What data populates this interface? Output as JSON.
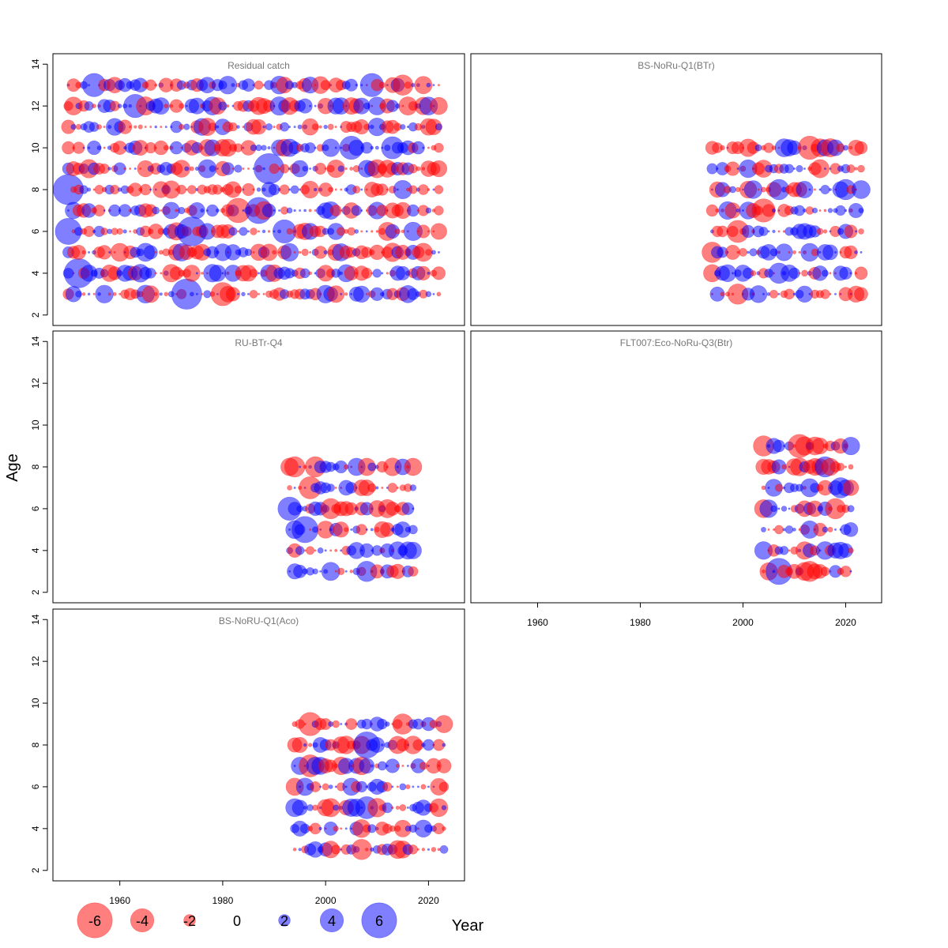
{
  "figure": {
    "ylabel": "Age",
    "xlabel": "Year",
    "xticks": [
      1960,
      1980,
      2000,
      2020
    ],
    "yticks": [
      2,
      4,
      6,
      8,
      10,
      12,
      14
    ],
    "xlim": [
      1947,
      2027
    ],
    "ylim": [
      1.5,
      14.5
    ],
    "positive_color": "#0000FF",
    "negative_color": "#FF0000",
    "fill_opacity": 0.5
  },
  "legend": {
    "values": [
      -6,
      -4,
      -2,
      0,
      2,
      4,
      6
    ],
    "labels": [
      "-6",
      "-4",
      "-2",
      "0",
      "2",
      "4",
      "6"
    ]
  },
  "chart_data": [
    {
      "type": "scatter",
      "title": "Residual catch",
      "encoding": "bubble size = |residual|, color = sign",
      "years": [
        1950,
        2022
      ],
      "ages": [
        3,
        4,
        5,
        6,
        7,
        8,
        9,
        10,
        11,
        12,
        13
      ],
      "highlights": [
        {
          "year": 1950,
          "age": 8,
          "value": 5.2
        },
        {
          "year": 1950,
          "age": 6,
          "value": 4.5
        },
        {
          "year": 1952,
          "age": 4,
          "value": 5.0
        },
        {
          "year": 1955,
          "age": 13,
          "value": 4.0
        },
        {
          "year": 1963,
          "age": 12,
          "value": 4.0
        },
        {
          "year": 1973,
          "age": 3,
          "value": 5.2
        },
        {
          "year": 1974,
          "age": 6,
          "value": 5.0
        },
        {
          "year": 1980,
          "age": 3,
          "value": -4.0
        },
        {
          "year": 1983,
          "age": 7,
          "value": -4.2
        },
        {
          "year": 1987,
          "age": 7,
          "value": 4.5
        },
        {
          "year": 1989,
          "age": 9,
          "value": 5.2
        },
        {
          "year": 1992,
          "age": 6,
          "value": 4.0
        },
        {
          "year": 2005,
          "age": 10,
          "value": 4.0
        },
        {
          "year": 2009,
          "age": 13,
          "value": 4.0
        },
        {
          "year": 2013,
          "age": 10,
          "value": 3.8
        },
        {
          "year": 2015,
          "age": 13,
          "value": -3.5
        }
      ]
    },
    {
      "type": "scatter",
      "title": "BS-NoRu-Q1(BTr)",
      "encoding": "bubble size = |residual|, color = sign",
      "years": [
        1994,
        2023
      ],
      "ages": [
        3,
        4,
        5,
        6,
        7,
        8,
        9,
        10
      ],
      "highlights": [
        {
          "year": 1994,
          "age": 5,
          "value": -3.5
        },
        {
          "year": 1994,
          "age": 4,
          "value": -3.0
        },
        {
          "year": 1999,
          "age": 3,
          "value": -3.5
        },
        {
          "year": 1999,
          "age": 6,
          "value": -3.8
        },
        {
          "year": 2004,
          "age": 7,
          "value": -4.0
        },
        {
          "year": 2007,
          "age": 8,
          "value": 3.5
        },
        {
          "year": 2007,
          "age": 4,
          "value": 3.5
        },
        {
          "year": 2013,
          "age": 10,
          "value": -4.0
        },
        {
          "year": 2020,
          "age": 8,
          "value": 3.5
        }
      ]
    },
    {
      "type": "scatter",
      "title": "RU-BTr-Q4",
      "encoding": "bubble size = |residual|, color = sign",
      "years": [
        1993,
        2017
      ],
      "ages": [
        3,
        4,
        5,
        6,
        7,
        8
      ],
      "highlights": [
        {
          "year": 1993,
          "age": 6,
          "value": 4.0
        },
        {
          "year": 1994,
          "age": 8,
          "value": -3.5
        },
        {
          "year": 1996,
          "age": 5,
          "value": 4.5
        },
        {
          "year": 1997,
          "age": 7,
          "value": -3.8
        },
        {
          "year": 1998,
          "age": 8,
          "value": -3.5
        },
        {
          "year": 2001,
          "age": 6,
          "value": -3.5
        },
        {
          "year": 2008,
          "age": 3,
          "value": 3.5
        },
        {
          "year": 2017,
          "age": 8,
          "value": -3.0
        }
      ]
    },
    {
      "type": "scatter",
      "title": "FLT007:Eco-NoRu-Q3(Btr)",
      "encoding": "bubble size = |residual|, color = sign",
      "years": [
        2004,
        2021
      ],
      "ages": [
        3,
        4,
        5,
        6,
        7,
        8,
        9
      ],
      "highlights": [
        {
          "year": 2004,
          "age": 9,
          "value": -3.5
        },
        {
          "year": 2007,
          "age": 3,
          "value": 4.5
        },
        {
          "year": 2011,
          "age": 9,
          "value": -4.0
        },
        {
          "year": 2013,
          "age": 3,
          "value": -3.5
        },
        {
          "year": 2016,
          "age": 8,
          "value": 3.5
        },
        {
          "year": 2018,
          "age": 6,
          "value": -3.5
        },
        {
          "year": 2019,
          "age": 7,
          "value": 3.5
        }
      ]
    },
    {
      "type": "scatter",
      "title": "BS-NoRU-Q1(Aco)",
      "encoding": "bubble size = |residual|, color = sign",
      "years": [
        1994,
        2023
      ],
      "ages": [
        3,
        4,
        5,
        6,
        7,
        8,
        9
      ],
      "highlights": [
        {
          "year": 1994,
          "age": 6,
          "value": -3.0
        },
        {
          "year": 1997,
          "age": 9,
          "value": -4.0
        },
        {
          "year": 1997,
          "age": 7,
          "value": -3.8
        },
        {
          "year": 2007,
          "age": 3,
          "value": -3.5
        },
        {
          "year": 2008,
          "age": 8,
          "value": 4.5
        },
        {
          "year": 2008,
          "age": 5,
          "value": 3.8
        },
        {
          "year": 2015,
          "age": 9,
          "value": -3.5
        },
        {
          "year": 2023,
          "age": 9,
          "value": -3.0
        }
      ]
    }
  ]
}
